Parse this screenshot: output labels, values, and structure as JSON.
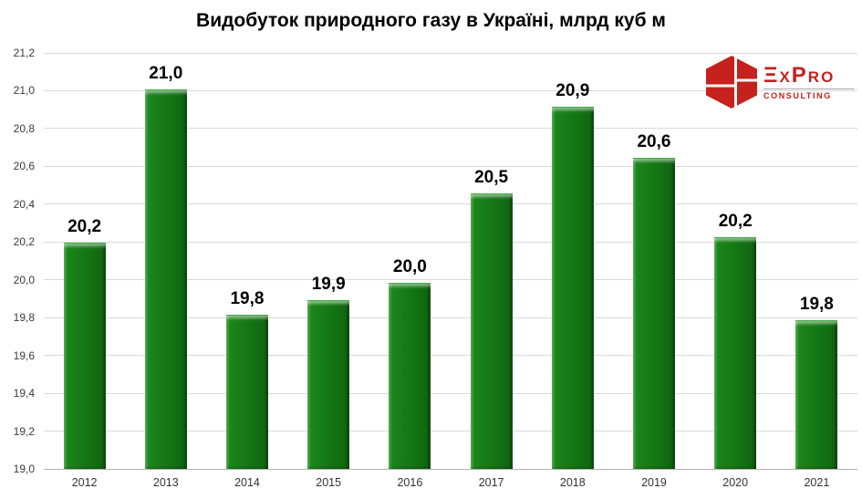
{
  "title": "Видобуток природного газу в Україні, млрд куб м",
  "logo": {
    "brand": "ExPro",
    "display": "ΞxPro",
    "subtitle": "CONSULTING",
    "brand_color": "#c5211d"
  },
  "chart_data": {
    "type": "bar",
    "title": "Видобуток природного газу в Україні, млрд куб м",
    "categories": [
      "2012",
      "2013",
      "2014",
      "2015",
      "2016",
      "2017",
      "2018",
      "2019",
      "2020",
      "2021"
    ],
    "values": [
      20.19,
      21.0,
      19.81,
      19.89,
      19.98,
      20.45,
      20.91,
      20.64,
      20.22,
      19.78
    ],
    "value_labels": [
      "20,2",
      "21,0",
      "19,8",
      "19,9",
      "20,0",
      "20,5",
      "20,9",
      "20,6",
      "20,2",
      "19,8"
    ],
    "xlabel": "",
    "ylabel": "",
    "ylim": [
      19.0,
      21.2
    ],
    "ytick_step": 0.2,
    "ytick_labels": [
      "21,2",
      "21,0",
      "20,8",
      "20,6",
      "20,4",
      "20,2",
      "20,0",
      "19,8",
      "19,6",
      "19,4",
      "19,2",
      "19,0"
    ],
    "bar_color": "#147514",
    "grid": true,
    "legend": false
  }
}
